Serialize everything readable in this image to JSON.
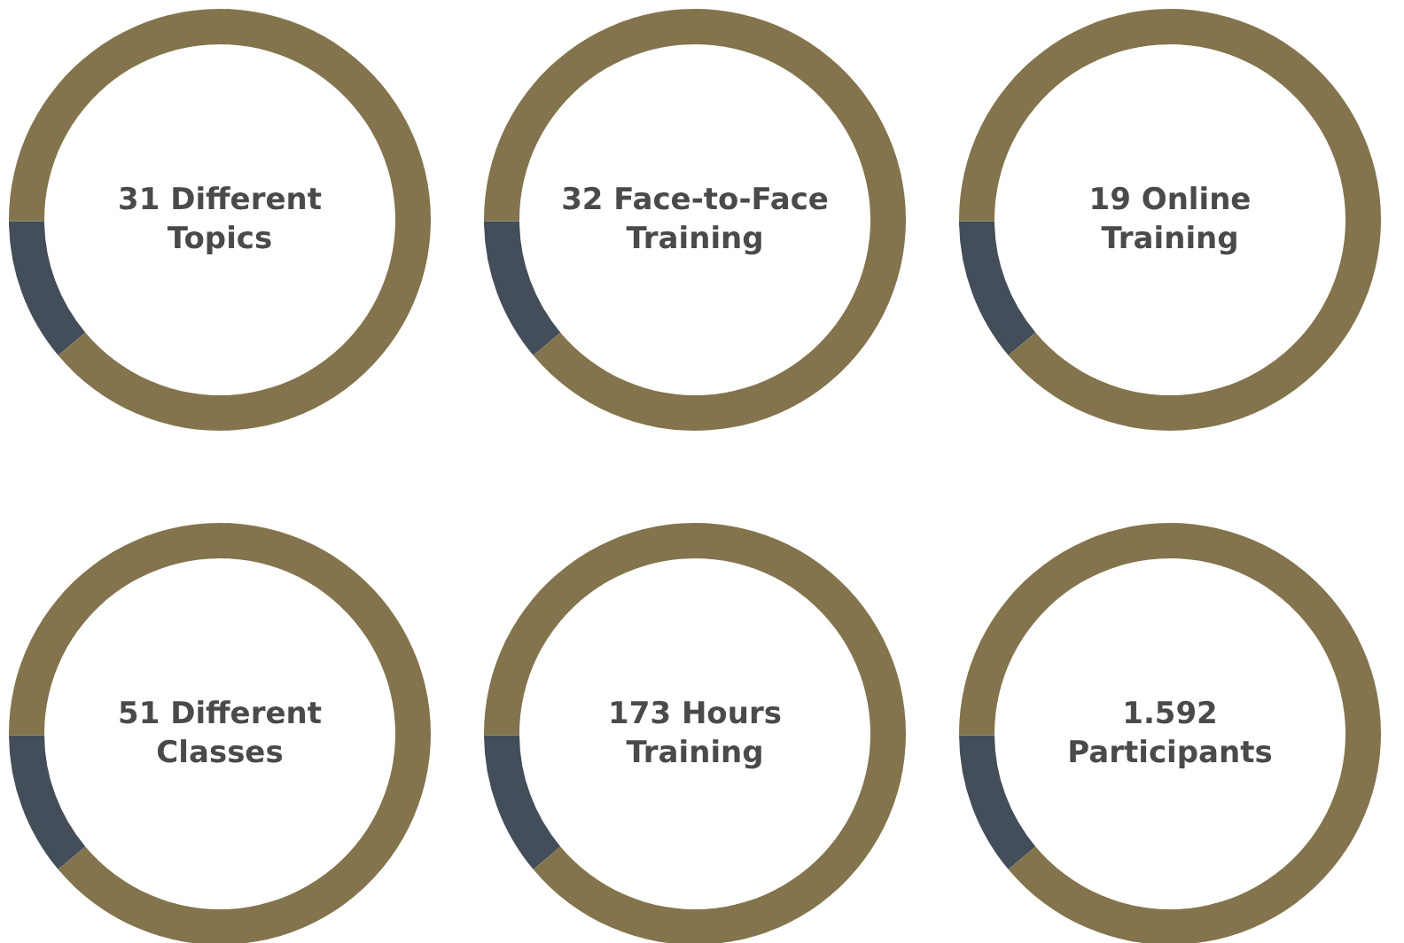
{
  "chart_data": [
    {
      "type": "donut",
      "title": "31 Different Topics",
      "categories": [
        null,
        null
      ],
      "values": [
        11,
        89
      ],
      "colors": [
        "#434e5a",
        "#83744d"
      ]
    },
    {
      "type": "donut",
      "title": "32 Face-to-Face Training",
      "categories": [
        null,
        null
      ],
      "values": [
        11,
        89
      ],
      "colors": [
        "#434e5a",
        "#83744d"
      ]
    },
    {
      "type": "donut",
      "title": "19 Online Training",
      "categories": [
        null,
        null
      ],
      "values": [
        11,
        89
      ],
      "colors": [
        "#434e5a",
        "#83744d"
      ]
    },
    {
      "type": "donut",
      "title": "51 Different Classes",
      "categories": [
        null,
        null
      ],
      "values": [
        11,
        89
      ],
      "colors": [
        "#434e5a",
        "#83744d"
      ]
    },
    {
      "type": "donut",
      "title": "173 Hours Training",
      "categories": [
        null,
        null
      ],
      "values": [
        11,
        89
      ],
      "colors": [
        "#434e5a",
        "#83744d"
      ]
    },
    {
      "type": "donut",
      "title": "1.592 Participants",
      "categories": [
        null,
        null
      ],
      "values": [
        11,
        89
      ],
      "colors": [
        "#434e5a",
        "#83744d"
      ]
    }
  ]
}
